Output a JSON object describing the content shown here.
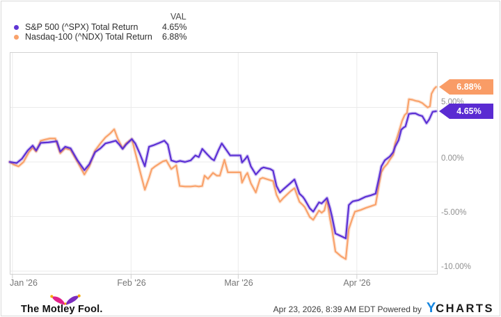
{
  "legend": {
    "header_val": "VAL",
    "rows": [
      {
        "label": "S&P 500 (^SPX) Total Return",
        "value": "4.65%"
      },
      {
        "label": "Nasdaq-100 (^NDX) Total Return",
        "value": "6.88%"
      }
    ]
  },
  "colors": {
    "spx_line": "#5b2fd4",
    "ndx_line": "#f9a26b",
    "spx_tag_bg": "#5a2bd2",
    "ndx_tag_bg": "#f99c66",
    "grid": "#ebebeb",
    "axis_text": "#8f8f8f",
    "ycharts_blue": "#1787e0"
  },
  "chart_data": {
    "type": "line",
    "title": "",
    "xlabel": "",
    "ylabel": "",
    "grid": true,
    "legend_position": "top-left",
    "x_axis": {
      "unit": "days from Jan 1 2026",
      "range_days": [
        -0.7,
        110.7
      ],
      "ticks": [
        {
          "label": "Jan '26",
          "day": 0
        },
        {
          "label": "Feb '26",
          "day": 31
        },
        {
          "label": "Mar '26",
          "day": 59
        },
        {
          "label": "Apr '26",
          "day": 90
        }
      ]
    },
    "y_axis": {
      "unit": "percent total return",
      "ylim": [
        -10.3,
        10.1
      ],
      "ticks": [
        {
          "label": "5.00%",
          "value": 5
        },
        {
          "label": "0.00%",
          "value": 0
        },
        {
          "label": "-5.00%",
          "value": -5
        },
        {
          "label": "-10.00%",
          "value": -10
        }
      ]
    },
    "series": [
      {
        "name": "S&P 500 (^SPX) Total Return",
        "value_label": "4.65%",
        "final_value": 4.65,
        "color": "#5b2fd4",
        "points": [
          [
            -0.7,
            0
          ],
          [
            1.1,
            -0.1
          ],
          [
            2.5,
            0.3
          ],
          [
            4,
            1.05
          ],
          [
            5.3,
            1.5
          ],
          [
            6.2,
            1.05
          ],
          [
            7.4,
            1.75
          ],
          [
            9.4,
            1.8
          ],
          [
            11.6,
            1.9
          ],
          [
            12.5,
            0.95
          ],
          [
            13.8,
            1.4
          ],
          [
            15.2,
            1.25
          ],
          [
            17,
            0.15
          ],
          [
            18.8,
            -0.75
          ],
          [
            20.1,
            -0.2
          ],
          [
            21.6,
            0.9
          ],
          [
            23,
            1.25
          ],
          [
            24.3,
            1.7
          ],
          [
            25.5,
            1.8
          ],
          [
            27,
            1.95
          ],
          [
            27.9,
            1.6
          ],
          [
            28.8,
            1.2
          ],
          [
            29.7,
            1.6
          ],
          [
            31.2,
            2.1
          ],
          [
            32.1,
            1.7
          ],
          [
            33.3,
            0.75
          ],
          [
            34.6,
            -0.4
          ],
          [
            35.7,
            1.4
          ],
          [
            37,
            1.55
          ],
          [
            38.4,
            1.75
          ],
          [
            39.7,
            1.95
          ],
          [
            40.6,
            1.6
          ],
          [
            41.5,
            0.15
          ],
          [
            42.8,
            0
          ],
          [
            43.8,
            0.1
          ],
          [
            45.1,
            0
          ],
          [
            46.6,
            0.15
          ],
          [
            47.8,
            0.6
          ],
          [
            48.7,
            0.45
          ],
          [
            49.6,
            1.2
          ],
          [
            50.9,
            0.7
          ],
          [
            52,
            0.3
          ],
          [
            52.7,
            0.15
          ],
          [
            53.8,
            1.05
          ],
          [
            54.7,
            1.7
          ],
          [
            56,
            1.05
          ],
          [
            56.9,
            0.6
          ],
          [
            58.2,
            0.6
          ],
          [
            59.6,
            0.6
          ],
          [
            60,
            -0.05
          ],
          [
            60.9,
            0.3
          ],
          [
            61.4,
            0.55
          ],
          [
            62.3,
            -0.4
          ],
          [
            63.6,
            -1.15
          ],
          [
            65,
            -0.6
          ],
          [
            65.6,
            -0.5
          ],
          [
            67.4,
            -0.65
          ],
          [
            68.1,
            -0.8
          ],
          [
            69,
            -2.2
          ],
          [
            69.9,
            -2.8
          ],
          [
            70.8,
            -2.5
          ],
          [
            72.6,
            -1.95
          ],
          [
            73.7,
            -1.6
          ],
          [
            75,
            -2.9
          ],
          [
            75.9,
            -3.2
          ],
          [
            76.4,
            -3.45
          ],
          [
            77.7,
            -4.25
          ],
          [
            78.6,
            -4.55
          ],
          [
            80.1,
            -3.7
          ],
          [
            80.8,
            -3.8
          ],
          [
            81.5,
            -3.55
          ],
          [
            82.2,
            -3.3
          ],
          [
            83,
            -4.25
          ],
          [
            83.5,
            -5
          ],
          [
            84.4,
            -6.55
          ],
          [
            85.9,
            -6.8
          ],
          [
            87.1,
            -7
          ],
          [
            87.9,
            -3.95
          ],
          [
            88.6,
            -3.7
          ],
          [
            89,
            -3.6
          ],
          [
            90.4,
            -3.5
          ],
          [
            92.2,
            -3.2
          ],
          [
            93.7,
            -3.05
          ],
          [
            94.9,
            -2.9
          ],
          [
            95.8,
            -1.45
          ],
          [
            96.4,
            -0.4
          ],
          [
            97.3,
            0.15
          ],
          [
            98.6,
            0.5
          ],
          [
            99.5,
            0.9
          ],
          [
            100,
            1.4
          ],
          [
            100.9,
            2
          ],
          [
            101.6,
            2.95
          ],
          [
            102.2,
            3.15
          ],
          [
            102.7,
            3.25
          ],
          [
            103.6,
            4.4
          ],
          [
            104.5,
            4.45
          ],
          [
            105.3,
            4.45
          ],
          [
            106.2,
            4.3
          ],
          [
            107.1,
            4.2
          ],
          [
            108.2,
            3.55
          ],
          [
            108.9,
            3.9
          ],
          [
            109.8,
            4.6
          ],
          [
            110.7,
            4.65
          ]
        ]
      },
      {
        "name": "Nasdaq-100 (^NDX) Total Return",
        "value_label": "6.88%",
        "final_value": 6.88,
        "color": "#f9a26b",
        "points": [
          [
            -0.7,
            0
          ],
          [
            0.4,
            -0.25
          ],
          [
            1.6,
            -0.4
          ],
          [
            2.9,
            0
          ],
          [
            4.3,
            0.9
          ],
          [
            5.3,
            1.3
          ],
          [
            6.2,
            0.95
          ],
          [
            7.4,
            1.95
          ],
          [
            8.5,
            2.05
          ],
          [
            9.8,
            2.15
          ],
          [
            11.2,
            2.15
          ],
          [
            12.5,
            0.8
          ],
          [
            13.8,
            1.25
          ],
          [
            15.2,
            1.1
          ],
          [
            17,
            0
          ],
          [
            18.8,
            -1.15
          ],
          [
            20.1,
            -0.4
          ],
          [
            21.6,
            1.05
          ],
          [
            23,
            1.7
          ],
          [
            24.3,
            2.25
          ],
          [
            25.5,
            2.6
          ],
          [
            26.6,
            3
          ],
          [
            27.5,
            2.15
          ],
          [
            28.8,
            1.25
          ],
          [
            29.7,
            1.7
          ],
          [
            31.2,
            2.1
          ],
          [
            32.4,
            0.45
          ],
          [
            33.3,
            -0.8
          ],
          [
            34.6,
            -2.55
          ],
          [
            35.7,
            -1.45
          ],
          [
            36.4,
            -0.65
          ],
          [
            37.3,
            -0.4
          ],
          [
            38.4,
            -0.15
          ],
          [
            39.3,
            0.05
          ],
          [
            40.2,
            0.15
          ],
          [
            41.5,
            -0.65
          ],
          [
            42.8,
            -0.3
          ],
          [
            43.7,
            -2.2
          ],
          [
            45.1,
            -2.25
          ],
          [
            46.6,
            -2.25
          ],
          [
            47.8,
            -2.2
          ],
          [
            48.7,
            -2.25
          ],
          [
            49.6,
            -2.2
          ],
          [
            50.2,
            -1.25
          ],
          [
            51.1,
            -1.55
          ],
          [
            52.4,
            -1
          ],
          [
            53.4,
            -1.25
          ],
          [
            54.2,
            -1.25
          ],
          [
            55.4,
            0.2
          ],
          [
            56.3,
            -0.95
          ],
          [
            58.2,
            -0.95
          ],
          [
            59.6,
            -0.95
          ],
          [
            60,
            -1.9
          ],
          [
            60.9,
            -1.25
          ],
          [
            61.4,
            -1
          ],
          [
            62.3,
            -1.95
          ],
          [
            63.6,
            -2.8
          ],
          [
            64.7,
            -1.55
          ],
          [
            65.4,
            -1.45
          ],
          [
            67.2,
            -1.65
          ],
          [
            68.1,
            -1.75
          ],
          [
            69,
            -3
          ],
          [
            69.9,
            -3.65
          ],
          [
            70.8,
            -3.3
          ],
          [
            72.6,
            -2.7
          ],
          [
            73.7,
            -2.4
          ],
          [
            75,
            -3.65
          ],
          [
            75.9,
            -3.95
          ],
          [
            76.4,
            -4.15
          ],
          [
            77.7,
            -5.05
          ],
          [
            78.6,
            -5.3
          ],
          [
            80.1,
            -4.45
          ],
          [
            80.8,
            -4.65
          ],
          [
            81.5,
            -4.45
          ],
          [
            82.2,
            -3.45
          ],
          [
            83,
            -5.25
          ],
          [
            83.5,
            -6.15
          ],
          [
            84.4,
            -8.2
          ],
          [
            85.9,
            -8.65
          ],
          [
            87.1,
            -8.9
          ],
          [
            87.9,
            -6.15
          ],
          [
            88.8,
            -5.2
          ],
          [
            89.5,
            -4.55
          ],
          [
            91,
            -4.4
          ],
          [
            92.4,
            -4.2
          ],
          [
            93.7,
            -4.05
          ],
          [
            94.9,
            -3.9
          ],
          [
            95.8,
            -2.05
          ],
          [
            96.4,
            -0.95
          ],
          [
            97.1,
            -0.5
          ],
          [
            98,
            -0.15
          ],
          [
            98.6,
            0.2
          ],
          [
            99.5,
            0.65
          ],
          [
            100,
            1.7
          ],
          [
            100.7,
            2.45
          ],
          [
            101.3,
            3.15
          ],
          [
            101.8,
            3.75
          ],
          [
            102.5,
            4.3
          ],
          [
            103.1,
            4.5
          ],
          [
            103.6,
            5.75
          ],
          [
            104.5,
            5.7
          ],
          [
            105.4,
            5.6
          ],
          [
            106.2,
            5.55
          ],
          [
            107.1,
            5.4
          ],
          [
            107.6,
            5.25
          ],
          [
            108.5,
            5
          ],
          [
            109.1,
            5.1
          ],
          [
            109.5,
            6.25
          ],
          [
            110.2,
            6.7
          ],
          [
            110.7,
            6.88
          ]
        ]
      }
    ]
  },
  "footer": {
    "brand": "The Motley Fool.",
    "timestamp_powered": "Apr 23, 2026, 8:39 AM EDT Powered by",
    "ycharts_y": "Y",
    "ycharts_rest": "CHARTS"
  }
}
